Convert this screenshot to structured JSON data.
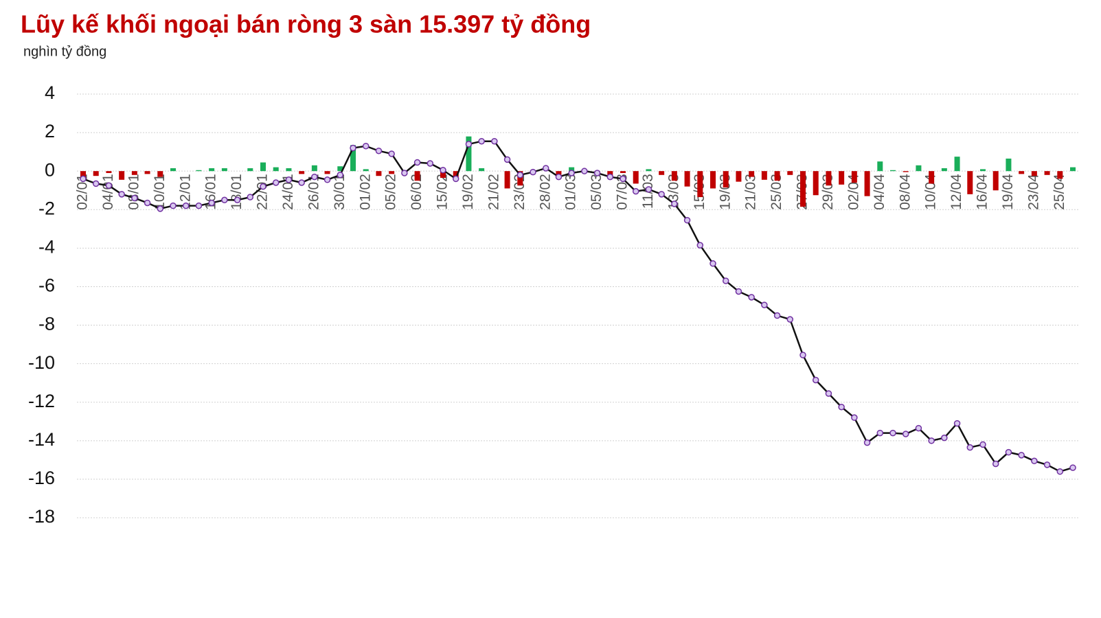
{
  "chart_data": {
    "type": "combo",
    "title": "Lũy kế khối ngoại bán ròng 3 sàn 15.397 tỷ đồng",
    "subtitle": "nghìn tỷ đồng",
    "categories": [
      "02/01",
      null,
      "04/01",
      null,
      "08/01",
      null,
      "10/01",
      null,
      "12/01",
      null,
      "16/01",
      null,
      "18/01",
      null,
      "22/01",
      null,
      "24/01",
      null,
      "26/01",
      null,
      "30/01",
      null,
      "01/02",
      null,
      "05/02",
      null,
      "06/02",
      null,
      "15/02",
      null,
      "19/02",
      null,
      "21/02",
      null,
      "23/02",
      null,
      "28/02",
      null,
      "01/03",
      null,
      "05/03",
      null,
      "07/03",
      null,
      "11/03",
      null,
      "13/03",
      null,
      "15/03",
      null,
      "19/03",
      null,
      "21/03",
      null,
      "25/03",
      null,
      "27/03",
      null,
      "29/03",
      null,
      "02/04",
      null,
      "04/04",
      null,
      "08/04",
      null,
      "10/04",
      null,
      "12/04",
      null,
      "16/04",
      null,
      "19/04",
      null,
      "23/04",
      null,
      "25/04",
      null
    ],
    "series": [
      {
        "type": "bar",
        "positive_color": "#1aae5a",
        "negative_color": "#c00000",
        "values": [
          -0.35,
          -0.25,
          -0.1,
          -0.45,
          -0.2,
          -0.15,
          -0.3,
          0.15,
          0,
          0.05,
          0.15,
          0.15,
          0,
          0.15,
          0.45,
          0.2,
          0.15,
          -0.15,
          0.3,
          -0.15,
          0.25,
          1.35,
          0.1,
          -0.25,
          -0.15,
          -0.05,
          -0.5,
          0,
          -0.35,
          -0.4,
          1.8,
          0.15,
          0,
          -0.9,
          -0.75,
          0,
          0,
          -0.2,
          0.2,
          0.05,
          -0.1,
          -0.25,
          -0.1,
          -0.65,
          0.1,
          -0.2,
          -0.5,
          -0.8,
          -1.35,
          -0.9,
          -0.85,
          -0.55,
          -0.3,
          -0.45,
          -0.5,
          -0.2,
          -1.85,
          -1.25,
          -0.75,
          -0.7,
          -0.6,
          -1.3,
          0.5,
          0.05,
          -0.05,
          0.3,
          -0.65,
          0.15,
          0.75,
          -1.2,
          0.1,
          -1.0,
          0.65,
          -0.15,
          -0.25,
          -0.2,
          -0.4,
          0.2
        ]
      },
      {
        "type": "line",
        "color": "#111111",
        "marker_fill": "#d9c8f0",
        "marker_stroke": "#7030a0",
        "values": [
          -0.4,
          -0.65,
          -0.75,
          -1.2,
          -1.4,
          -1.65,
          -1.95,
          -1.8,
          -1.8,
          -1.8,
          -1.65,
          -1.5,
          -1.5,
          -1.35,
          -0.8,
          -0.6,
          -0.45,
          -0.6,
          -0.3,
          -0.45,
          -0.2,
          1.2,
          1.3,
          1.05,
          0.9,
          -0.1,
          0.45,
          0.4,
          0.05,
          -0.4,
          1.4,
          1.55,
          1.55,
          0.6,
          -0.2,
          -0.05,
          0.15,
          -0.3,
          -0.1,
          0,
          -0.1,
          -0.3,
          -0.4,
          -1.05,
          -0.95,
          -1.2,
          -1.7,
          -2.55,
          -3.85,
          -4.8,
          -5.7,
          -6.25,
          -6.55,
          -6.95,
          -7.5,
          -7.7,
          -9.55,
          -10.85,
          -11.55,
          -12.25,
          -12.8,
          -14.1,
          -13.6,
          -13.6,
          -13.65,
          -13.35,
          -14,
          -13.85,
          -13.1,
          -14.35,
          -14.2,
          -15.2,
          -14.6,
          -14.75,
          -15.05,
          -15.25,
          -15.6,
          -15.4
        ]
      }
    ],
    "ylim": [
      -18,
      4
    ],
    "yticks": [
      4,
      2,
      0,
      -2,
      -4,
      -6,
      -8,
      -10,
      -12,
      -14,
      -16,
      -18
    ],
    "grid": true
  }
}
